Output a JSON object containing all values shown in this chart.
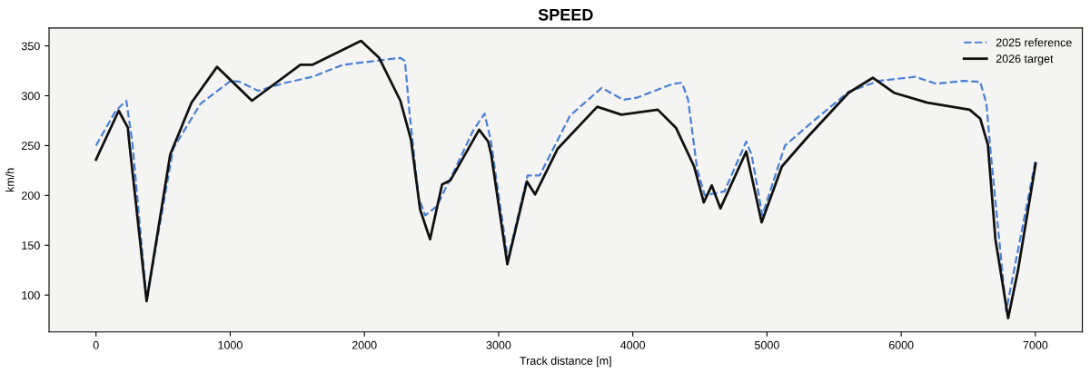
{
  "chart_data": {
    "type": "line",
    "title": "SPEED",
    "xlabel": "Track distance [m]",
    "ylabel": "km/h",
    "xlim": [
      -350,
      7350
    ],
    "ylim": [
      63,
      368
    ],
    "xticks": [
      0,
      1000,
      2000,
      3000,
      4000,
      5000,
      6000,
      7000
    ],
    "yticks": [
      100,
      150,
      200,
      250,
      300,
      350
    ],
    "grid": false,
    "legend": "top right",
    "series": [
      {
        "name": "2025 reference",
        "color": "#4a80d8",
        "line_style": "dashed",
        "x": [
          0,
          147,
          226,
          271,
          377,
          575,
          779,
          1004,
          1072,
          1207,
          1410,
          1613,
          1839,
          2268,
          2302,
          2336,
          2358,
          2403,
          2453,
          2539,
          2674,
          2810,
          2895,
          2941,
          3069,
          3216,
          3306,
          3532,
          3769,
          3927,
          4028,
          4299,
          4367,
          4412,
          4480,
          4536,
          4683,
          4845,
          4885,
          4965,
          5134,
          5314,
          5608,
          5834,
          6105,
          6262,
          6465,
          6589,
          6635,
          6664,
          6782,
          7002
        ],
        "values": [
          250,
          285,
          295,
          253,
          95,
          247,
          292,
          315,
          314,
          305,
          313,
          319,
          331,
          338,
          335,
          283,
          256,
          198,
          180,
          189,
          226,
          265,
          282,
          256,
          136,
          220,
          220,
          280,
          308,
          296,
          298,
          312,
          313,
          296,
          226,
          200,
          204,
          254,
          241,
          180,
          250,
          271,
          304,
          315,
          319,
          312,
          315,
          314,
          292,
          247,
          84,
          236
        ]
      },
      {
        "name": "2026 target",
        "color": "#111111",
        "line_style": "solid",
        "x": [
          0,
          169,
          237,
          248,
          377,
          553,
          711,
          902,
          1162,
          1523,
          1611,
          1975,
          2110,
          2268,
          2347,
          2415,
          2489,
          2579,
          2640,
          2855,
          2922,
          2945,
          3065,
          3211,
          3272,
          3441,
          3735,
          3915,
          4186,
          4321,
          4457,
          4529,
          4588,
          4653,
          4845,
          4960,
          5111,
          5292,
          5608,
          5788,
          5946,
          6195,
          6510,
          6589,
          6646,
          6702,
          6797,
          6872,
          7002
        ],
        "values": [
          236,
          285,
          268,
          253,
          94,
          241,
          293,
          329,
          295,
          331,
          331,
          355,
          338,
          295,
          256,
          186,
          156,
          211,
          215,
          266,
          254,
          241,
          131,
          214,
          201,
          247,
          289,
          281,
          286,
          268,
          229,
          193,
          210,
          187,
          244,
          173,
          229,
          257,
          303,
          318,
          303,
          293,
          286,
          277,
          251,
          156,
          77,
          126,
          232
        ]
      }
    ]
  }
}
